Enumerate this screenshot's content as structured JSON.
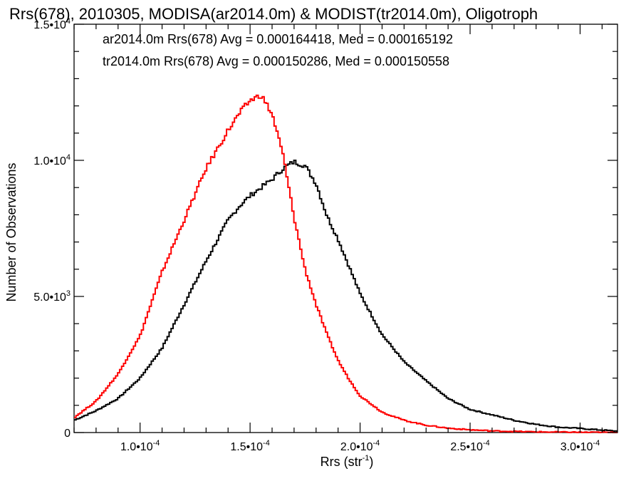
{
  "chart_data": {
    "type": "line",
    "title": "Rrs(678), 2010305, MODISA(ar2014.0m) & MODIST(tr2014.0m), Oligotroph",
    "xlabel": {
      "base": "Rrs (str",
      "sup": "-1",
      "close": ")"
    },
    "ylabel": "Number of Observations",
    "xlim": [
      7e-05,
      0.000317
    ],
    "ylim": [
      0,
      15000
    ],
    "x_ticks": [
      {
        "value": 0.0001,
        "mant": "1.0•10",
        "exp": "-4"
      },
      {
        "value": 0.00015,
        "mant": "1.5•10",
        "exp": "-4"
      },
      {
        "value": 0.0002,
        "mant": "2.0•10",
        "exp": "-4"
      },
      {
        "value": 0.00025,
        "mant": "2.5•10",
        "exp": "-4"
      },
      {
        "value": 0.0003,
        "mant": "3.0•10",
        "exp": "-4"
      }
    ],
    "y_ticks": [
      {
        "value": 0,
        "mant": "0",
        "exp": ""
      },
      {
        "value": 5000,
        "mant": "5.0•10",
        "exp": "3"
      },
      {
        "value": 10000,
        "mant": "1.0•10",
        "exp": "4"
      },
      {
        "value": 15000,
        "mant": "1.5•10",
        "exp": "4"
      }
    ],
    "annotations": [
      {
        "text": "ar2014.0m Rrs(678) Avg = 0.000164418, Med = 0.000165192",
        "color": "#000000"
      },
      {
        "text": "tr2014.0m Rrs(678) Avg = 0.000150286, Med = 0.000150558",
        "color": "#ff0000"
      }
    ],
    "grid": false,
    "series": [
      {
        "color": "#000000",
        "x": [
          7e-05,
          8e-05,
          9e-05,
          0.0001,
          0.00011,
          0.00012,
          0.00013,
          0.00014,
          0.000145,
          0.00015,
          0.000155,
          0.00016,
          0.000165,
          0.00017,
          0.000175,
          0.00018,
          0.000185,
          0.00019,
          0.000195,
          0.0002,
          0.00021,
          0.00022,
          0.00023,
          0.00024,
          0.00025,
          0.00026,
          0.00027,
          0.00028,
          0.00029,
          0.0003,
          0.00031,
          0.000317
        ],
        "y": [
          450,
          800,
          1250,
          2000,
          3100,
          4700,
          6300,
          7800,
          8300,
          8700,
          9000,
          9300,
          9700,
          9950,
          9800,
          9150,
          7950,
          7100,
          6100,
          5100,
          3600,
          2600,
          1900,
          1250,
          850,
          650,
          450,
          300,
          200,
          150,
          90,
          50
        ]
      },
      {
        "color": "#ff0000",
        "x": [
          7e-05,
          8e-05,
          9e-05,
          0.0001,
          0.00011,
          0.00012,
          0.00013,
          0.00014,
          0.000145,
          0.00015,
          0.000155,
          0.00016,
          0.000165,
          0.00017,
          0.000175,
          0.00018,
          0.000185,
          0.00019,
          0.000195,
          0.0002,
          0.00021,
          0.00022,
          0.00023,
          0.00024,
          0.00025,
          0.00026,
          0.00027,
          0.00028,
          0.00029,
          0.0003,
          0.00031,
          0.000317
        ],
        "y": [
          550,
          1150,
          2150,
          3550,
          5900,
          7800,
          9700,
          11100,
          11700,
          12200,
          12400,
          11700,
          10200,
          7900,
          6000,
          4700,
          3600,
          2650,
          1950,
          1350,
          750,
          450,
          270,
          160,
          100,
          60,
          40,
          25,
          15,
          10,
          5,
          3
        ]
      }
    ]
  }
}
